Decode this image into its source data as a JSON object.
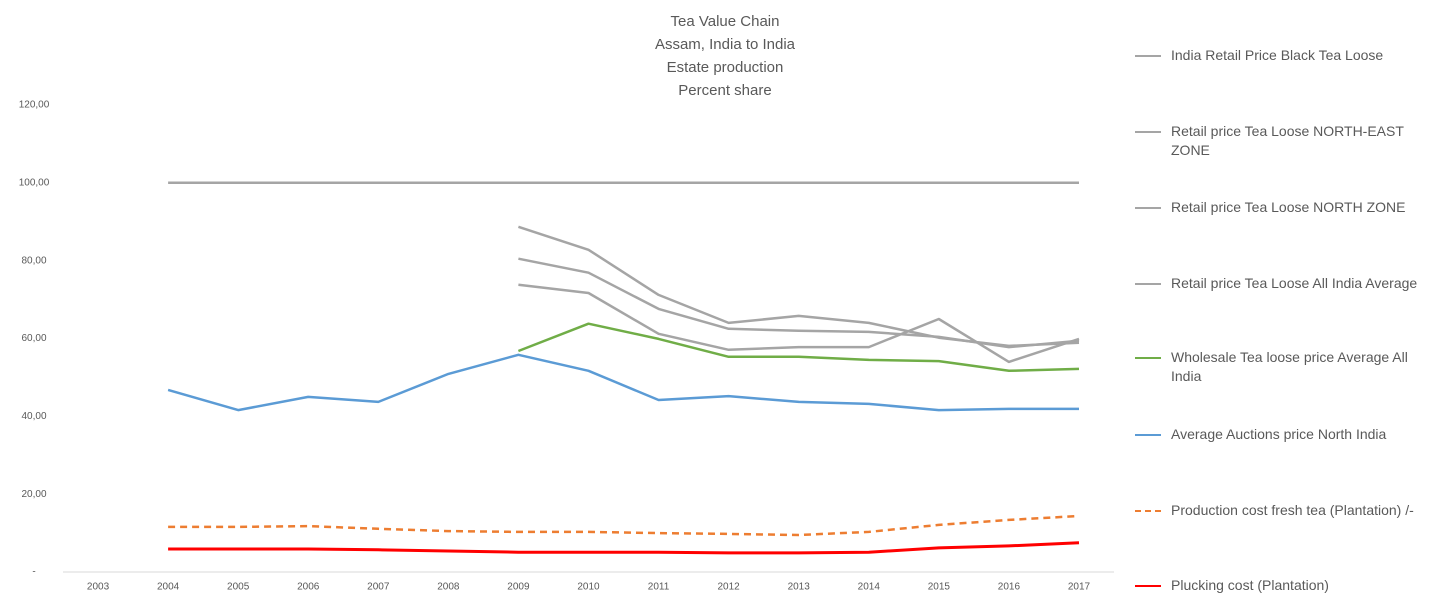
{
  "chart_data": {
    "type": "line",
    "title": [
      "Tea Value Chain",
      "Assam, India to India",
      "Estate production",
      "Percent share"
    ],
    "categories": [
      "2003",
      "2004",
      "2005",
      "2006",
      "2007",
      "2008",
      "2009",
      "2010",
      "2011",
      "2012",
      "2013",
      "2014",
      "2015",
      "2016",
      "2017"
    ],
    "ylim": [
      0,
      120
    ],
    "yticks": [
      {
        "value": 0,
        "label": "-"
      },
      {
        "value": 20,
        "label": "20,00"
      },
      {
        "value": 40,
        "label": "40,00"
      },
      {
        "value": 60,
        "label": "60,00"
      },
      {
        "value": 80,
        "label": "80,00"
      },
      {
        "value": 100,
        "label": "100,00"
      },
      {
        "value": 120,
        "label": "120,00"
      }
    ],
    "grid": false,
    "legend": "right",
    "series": [
      {
        "name": "India Retail Price Black Tea Loose",
        "color": "#a5a5a5",
        "values": [
          null,
          100,
          100,
          100,
          100,
          100,
          100,
          100,
          100,
          100,
          100,
          100,
          100,
          100,
          100
        ]
      },
      {
        "name": "Retail price Tea Loose NORTH-EAST ZONE",
        "color": "#a5a5a5",
        "values": [
          null,
          null,
          null,
          null,
          null,
          null,
          88.7,
          82.8,
          71.2,
          64,
          65.8,
          64,
          60.2,
          58.1,
          58.9
        ]
      },
      {
        "name": "Retail price Tea Loose NORTH ZONE",
        "color": "#a5a5a5",
        "values": [
          null,
          null,
          null,
          null,
          null,
          null,
          80.5,
          76.9,
          67.6,
          62.5,
          62,
          61.7,
          60.4,
          57.8,
          59.4
        ]
      },
      {
        "name": "Retail price Tea Loose All India Average",
        "color": "#a5a5a5",
        "values": [
          null,
          null,
          null,
          null,
          null,
          null,
          73.8,
          71.7,
          61.2,
          57.1,
          57.8,
          57.8,
          65,
          54,
          59.9
        ]
      },
      {
        "name": "Wholesale Tea loose price Average All India",
        "color": "#70ad47",
        "values": [
          null,
          null,
          null,
          null,
          null,
          null,
          56.8,
          63.8,
          59.9,
          55.3,
          55.3,
          54.5,
          54.2,
          51.7,
          52.2
        ]
      },
      {
        "name": "Average Auctions price North India",
        "color": "#5b9bd5",
        "values": [
          null,
          46.8,
          41.6,
          45,
          43.7,
          50.9,
          55.8,
          51.7,
          44.2,
          45.2,
          43.7,
          43.2,
          41.6,
          41.9,
          41.9
        ]
      },
      {
        "name": "Production cost fresh tea (Plantation) /-",
        "color": "#ed7d31",
        "dash": "dashed",
        "values": [
          null,
          11.6,
          11.6,
          11.8,
          11.1,
          10.5,
          10.3,
          10.3,
          10,
          9.8,
          9.5,
          10.3,
          12.1,
          13.4,
          14.4
        ]
      },
      {
        "name": "Plucking cost (Plantation)",
        "color": "#ff0000",
        "values": [
          null,
          5.9,
          5.9,
          5.9,
          5.7,
          5.4,
          5.1,
          5.1,
          5.1,
          4.9,
          4.9,
          5.1,
          6.2,
          6.7,
          7.5
        ]
      }
    ]
  }
}
